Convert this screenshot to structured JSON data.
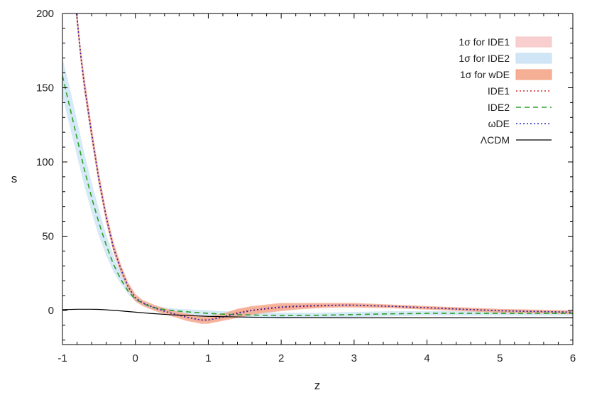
{
  "chart_data": {
    "type": "line",
    "title": "",
    "xlabel": "z",
    "ylabel": "s",
    "xlim": [
      -1,
      6
    ],
    "ylim": [
      -23,
      200
    ],
    "x_ticks": [
      -1,
      0,
      1,
      2,
      3,
      4,
      5,
      6
    ],
    "y_ticks": [
      0,
      50,
      100,
      150,
      200
    ],
    "grid": false,
    "legend_position": "top-right",
    "bands": [
      {
        "name": "1σ for IDE1",
        "color": "#f7c6c6",
        "x": [
          -0.82,
          -0.75,
          -0.7,
          -0.6,
          -0.5,
          -0.4,
          -0.3,
          -0.2,
          -0.1,
          0,
          0.1,
          0.3,
          0.5,
          0.7,
          0.9,
          1.0,
          1.2,
          1.4,
          1.6,
          1.8,
          2.0,
          2.2,
          2.5,
          2.8,
          3.0,
          3.5,
          4.0,
          5.0,
          6.0
        ],
        "upper": [
          212,
          176,
          157,
          123,
          92,
          66,
          45,
          30,
          18,
          10,
          6,
          2,
          -1,
          -3,
          -5,
          -5,
          -3,
          1,
          2,
          3,
          4,
          4,
          4.5,
          4.5,
          4.5,
          3.5,
          2.5,
          0.5,
          -0.5
        ],
        "lower": [
          202,
          168,
          148,
          115,
          85,
          60,
          40,
          26,
          15,
          7,
          4,
          0,
          -3,
          -6,
          -8,
          -8,
          -6,
          -4,
          -2,
          -1,
          0,
          1,
          2,
          2.5,
          2.5,
          2,
          1,
          -1,
          -2
        ]
      },
      {
        "name": "1σ for IDE2",
        "color": "#c8e1f3",
        "x": [
          -1.0,
          -0.9,
          -0.8,
          -0.7,
          -0.6,
          -0.5,
          -0.4,
          -0.3,
          -0.2,
          -0.1,
          0,
          0.2,
          0.4,
          0.6,
          0.8,
          1.0,
          1.2,
          1.5,
          2.0,
          2.5,
          3.0,
          3.5,
          4.0,
          5.0,
          6.0
        ],
        "upper": [
          170,
          150,
          128,
          106,
          86,
          68,
          51,
          37,
          25,
          16,
          9,
          4,
          2,
          1,
          0.5,
          0,
          -0.5,
          -1,
          -1.5,
          -1.5,
          -1,
          -0.5,
          -0.5,
          -0.5,
          -0.5
        ],
        "lower": [
          144,
          124,
          104,
          84,
          66,
          50,
          37,
          26,
          18,
          11,
          6,
          1,
          -1,
          -2,
          -3,
          -4,
          -4.5,
          -5,
          -5.5,
          -5,
          -4.5,
          -4,
          -3.5,
          -3.5,
          -3.5
        ]
      },
      {
        "name": "1σ for wDE",
        "color": "#f3a183",
        "x": [
          -0.82,
          -0.75,
          -0.7,
          -0.6,
          -0.5,
          -0.4,
          -0.3,
          -0.2,
          -0.1,
          0,
          0.1,
          0.3,
          0.5,
          0.7,
          0.9,
          1.0,
          1.2,
          1.4,
          1.6,
          1.8,
          2.0,
          2.2,
          2.5,
          2.8,
          3.0,
          3.5,
          4.0,
          5.0,
          6.0
        ],
        "upper": [
          213,
          177,
          158,
          124,
          93,
          67,
          46,
          31,
          19,
          11,
          7,
          3,
          0,
          -2,
          -4,
          -4,
          -2,
          1,
          3,
          4,
          5,
          5,
          5,
          5,
          5,
          4,
          3,
          1,
          0
        ],
        "lower": [
          201,
          167,
          147,
          114,
          84,
          59,
          39,
          25,
          14,
          6,
          3,
          -1,
          -4,
          -7,
          -9,
          -9,
          -7,
          -5,
          -3,
          -1.5,
          -0.5,
          0.5,
          1.5,
          2,
          2,
          1.5,
          0.5,
          -1.5,
          -2.5
        ]
      }
    ],
    "series": [
      {
        "name": "IDE1",
        "color": "#d62728",
        "dash": "2,3",
        "x": [
          -0.82,
          -0.75,
          -0.7,
          -0.6,
          -0.5,
          -0.4,
          -0.3,
          -0.2,
          -0.1,
          0,
          0.1,
          0.3,
          0.5,
          0.7,
          0.9,
          1.0,
          1.2,
          1.4,
          1.6,
          1.8,
          2.0,
          2.2,
          2.5,
          2.8,
          3.0,
          3.5,
          4.0,
          5.0,
          6.0
        ],
        "y": [
          207,
          172,
          152,
          119,
          88,
          63,
          42,
          28,
          16,
          8.5,
          5,
          1,
          -2,
          -4.5,
          -6.5,
          -6.5,
          -4.5,
          -1.5,
          0,
          1,
          2,
          2.5,
          3,
          3.5,
          3.5,
          2.8,
          1.8,
          -0.2,
          -1.2
        ]
      },
      {
        "name": "IDE2",
        "color": "#2ca02c",
        "dash": "7,5",
        "x": [
          -1.0,
          -0.9,
          -0.8,
          -0.7,
          -0.6,
          -0.5,
          -0.4,
          -0.3,
          -0.2,
          -0.1,
          0,
          0.2,
          0.4,
          0.6,
          0.8,
          1.0,
          1.2,
          1.5,
          2.0,
          2.5,
          3.0,
          3.5,
          4.0,
          5.0,
          6.0
        ],
        "y": [
          158,
          137,
          116,
          95,
          76,
          59,
          44,
          31,
          21,
          13,
          7.5,
          2.5,
          0.5,
          -0.5,
          -1.3,
          -2,
          -2.5,
          -3,
          -3.5,
          -3.3,
          -2.8,
          -2.3,
          -2,
          -2,
          -2
        ]
      },
      {
        "name": "ωDE",
        "color": "#2a2ab5",
        "dash": "2,3",
        "x": [
          -0.82,
          -0.75,
          -0.7,
          -0.6,
          -0.5,
          -0.4,
          -0.3,
          -0.2,
          -0.1,
          0,
          0.1,
          0.3,
          0.5,
          0.7,
          0.9,
          1.0,
          1.2,
          1.4,
          1.6,
          1.8,
          2.0,
          2.2,
          2.5,
          2.8,
          3.0,
          3.5,
          4.0,
          5.0,
          6.0
        ],
        "y": [
          207,
          172,
          152,
          119,
          88,
          63,
          42,
          28,
          16,
          8.5,
          5,
          1,
          -2,
          -4.5,
          -6.5,
          -6.5,
          -4.5,
          -2,
          0,
          1.3,
          2.3,
          2.8,
          3.3,
          3.5,
          3.5,
          2.8,
          1.8,
          -0.2,
          -1.2
        ]
      },
      {
        "name": "ΛCDM",
        "color": "#000000",
        "dash": "",
        "x": [
          -1.0,
          -0.8,
          -0.6,
          -0.5,
          -0.4,
          -0.2,
          0,
          0.2,
          0.5,
          1.0,
          1.5,
          2.0,
          3.0,
          4.0,
          5.0,
          6.0
        ],
        "y": [
          0.5,
          0.8,
          0.8,
          0.7,
          0.4,
          -0.3,
          -1.2,
          -2,
          -3,
          -4,
          -4.5,
          -4.8,
          -5,
          -5,
          -5,
          -5
        ]
      }
    ]
  }
}
